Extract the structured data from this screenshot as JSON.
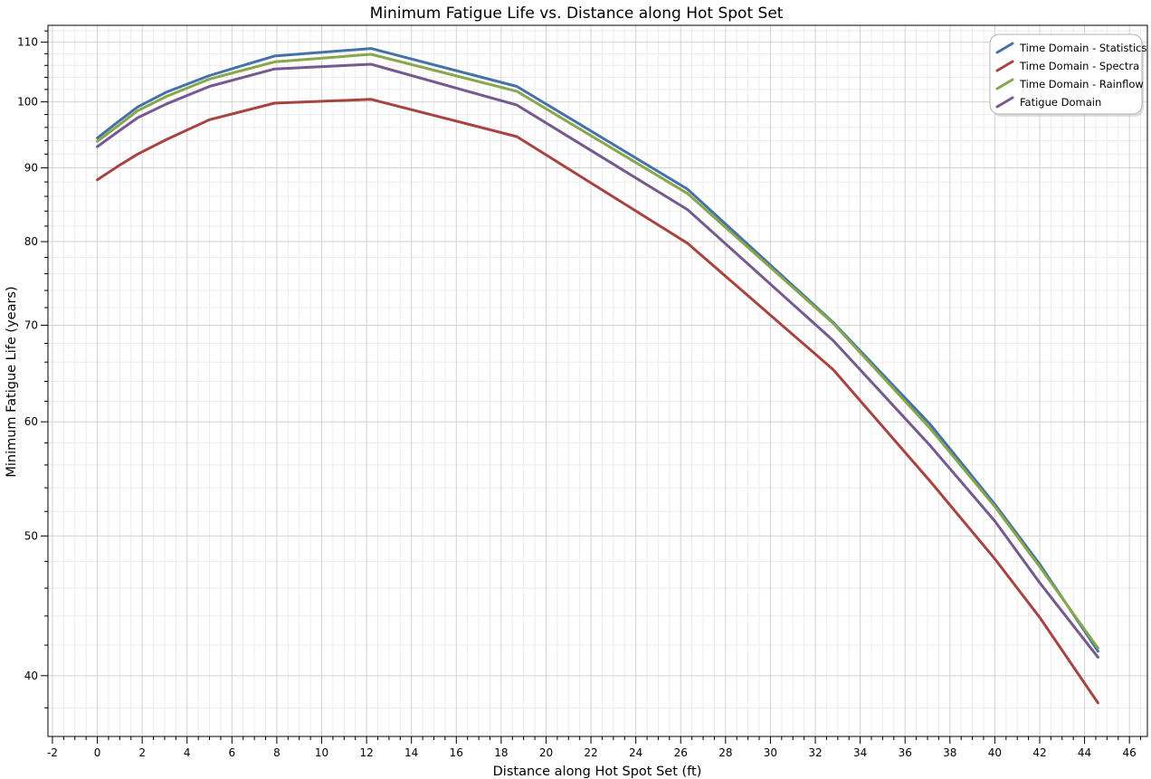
{
  "chart_data": {
    "type": "line",
    "title": "Minimum Fatigue Life vs. Distance along Hot Spot Set",
    "xlabel": "Distance along Hot Spot Set (ft)",
    "ylabel": "Minimum Fatigue Life (years)",
    "xlim": [
      -2.2,
      46.8
    ],
    "ylim": [
      36.3,
      113
    ],
    "y_scale": "log",
    "x_ticks": [
      -2,
      0,
      2,
      4,
      6,
      8,
      10,
      12,
      14,
      16,
      18,
      20,
      22,
      24,
      26,
      28,
      30,
      32,
      34,
      36,
      38,
      40,
      42,
      44,
      46
    ],
    "y_ticks": [
      40,
      50,
      60,
      70,
      80,
      90,
      100,
      110
    ],
    "grid": true,
    "legend_position": "top-right",
    "series": [
      {
        "name": "Time Domain - Statistics",
        "color": "#4472a8",
        "x": [
          0,
          0.9,
          1.8,
          3.1,
          5,
          7.9,
          12.2,
          18.7,
          26.3,
          32.8,
          37.1,
          40,
          42,
          44.6
        ],
        "y": [
          94.4,
          96.8,
          99.2,
          101.6,
          104.3,
          107.6,
          108.9,
          102.5,
          87.0,
          70.3,
          59.8,
          52.6,
          47.8,
          41.6
        ]
      },
      {
        "name": "Time Domain - Spectra",
        "color": "#a84440",
        "x": [
          0,
          0.9,
          1.8,
          3.1,
          5,
          7.9,
          12.2,
          18.7,
          26.3,
          32.8,
          37.1,
          40,
          42,
          44.6
        ],
        "y": [
          88.3,
          90.2,
          92.0,
          94.2,
          97.2,
          99.8,
          100.4,
          94.6,
          79.8,
          65.2,
          54.6,
          48.2,
          43.9,
          38.3
        ]
      },
      {
        "name": "Time Domain - Rainflow",
        "color": "#88a64c",
        "x": [
          0,
          0.9,
          1.8,
          3.1,
          5,
          7.9,
          12.2,
          18.7,
          26.3,
          32.8,
          37.1,
          40,
          42,
          44.6
        ],
        "y": [
          93.9,
          96.2,
          98.6,
          100.9,
          103.7,
          106.6,
          107.9,
          101.7,
          86.4,
          70.2,
          59.4,
          52.4,
          47.6,
          41.8
        ]
      },
      {
        "name": "Fatigue Domain",
        "color": "#76598f",
        "x": [
          0,
          0.9,
          1.8,
          3.1,
          5,
          7.9,
          12.2,
          18.7,
          26.3,
          32.8,
          37.1,
          40,
          42,
          44.6
        ],
        "y": [
          93.1,
          95.3,
          97.5,
          99.7,
          102.5,
          105.4,
          106.2,
          99.5,
          84.2,
          68.3,
          57.8,
          51.2,
          46.4,
          41.2
        ]
      }
    ]
  }
}
